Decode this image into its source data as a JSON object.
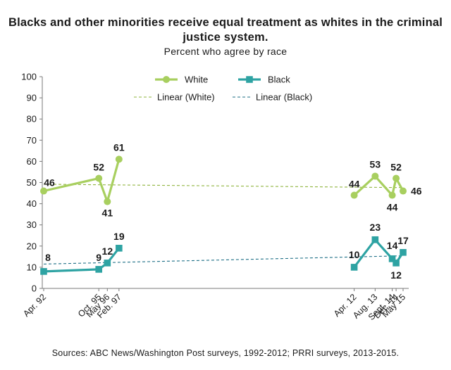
{
  "chart_data": {
    "type": "line",
    "title": "Blacks and other minorities receive equal treatment as whites in the criminal justice system.",
    "subtitle": "Percent who agree by race",
    "source": "Sources: ABC News/Washington Post surveys, 1992-2012; PRRI surveys, 2013-2015.",
    "ylim": [
      0,
      100
    ],
    "yticks": [
      "0",
      "10",
      "20",
      "30",
      "40",
      "50",
      "60",
      "70",
      "80",
      "90",
      "100"
    ],
    "grid": false,
    "legend_placement": "top-center",
    "x_labels": [
      "Apr. 92",
      "Oct. 95",
      "May 96",
      "Feb. 97",
      "Apr. 12",
      "Aug. 13",
      "Sept. 14",
      "Dec. 14",
      "May 15"
    ],
    "x_positions": [
      1992.25,
      1995.8,
      1996.35,
      1997.1,
      2012.25,
      2013.6,
      2014.7,
      2014.95,
      2015.4
    ],
    "series": [
      {
        "name": "White",
        "color": "#a8cf5f",
        "marker": "circle",
        "segments": [
          {
            "x": [
              1992.25,
              1995.8,
              1996.35,
              1997.1
            ],
            "values": [
              46,
              52,
              41,
              61
            ]
          },
          {
            "x": [
              2012.25,
              2013.6,
              2014.7,
              2014.95,
              2015.4
            ],
            "values": [
              44,
              53,
              44,
              52,
              46
            ]
          }
        ]
      },
      {
        "name": "Black",
        "color": "#2ea3a3",
        "marker": "square",
        "segments": [
          {
            "x": [
              1992.25,
              1995.8,
              1996.35,
              1997.1
            ],
            "values": [
              8,
              9,
              12,
              19
            ]
          },
          {
            "x": [
              2012.25,
              2013.6,
              2014.7,
              2014.95,
              2015.4
            ],
            "values": [
              10,
              23,
              14,
              12,
              17
            ]
          }
        ]
      }
    ],
    "trendlines": [
      {
        "name": "Linear (White)",
        "color": "#8fb43d",
        "x": [
          1992.25,
          2015.4
        ],
        "values": [
          49.2,
          47.6
        ]
      },
      {
        "name": "Linear (Black)",
        "color": "#1d6f86",
        "x": [
          1992.25,
          2015.4
        ],
        "values": [
          11.5,
          15.4
        ]
      }
    ]
  }
}
